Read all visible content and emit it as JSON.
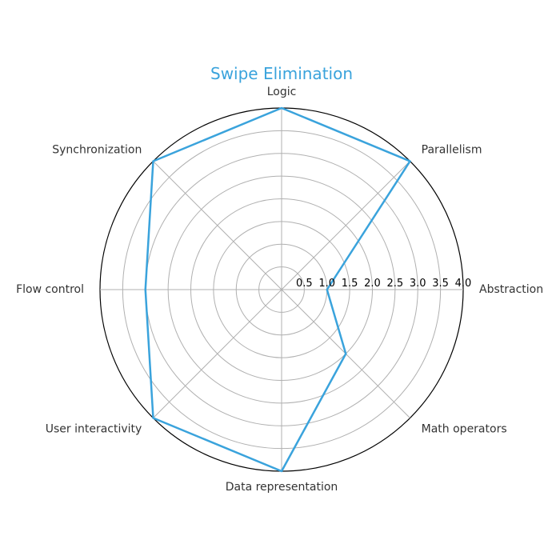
{
  "chart_data": {
    "type": "radar",
    "title": "Swipe Elimination",
    "axes": [
      "Abstraction",
      "Parallelism",
      "Logic",
      "Synchronization",
      "Flow control",
      "User interactivity",
      "Data representation",
      "Math operators"
    ],
    "series": [
      {
        "values": [
          1.0,
          4.0,
          4.0,
          4.0,
          3.0,
          4.0,
          4.0,
          2.0
        ]
      }
    ],
    "r_ticks": [
      0.5,
      1.0,
      1.5,
      2.0,
      2.5,
      3.0,
      3.5,
      4.0
    ],
    "r_tick_labels": [
      "0.5",
      "1.0",
      "1.5",
      "2.0",
      "2.5",
      "3.0",
      "3.5",
      "4.0"
    ],
    "rlim": [
      0,
      4
    ],
    "grid": true,
    "colors": {
      "series": "#3aa3dc",
      "title": "#3aa3dc"
    }
  }
}
